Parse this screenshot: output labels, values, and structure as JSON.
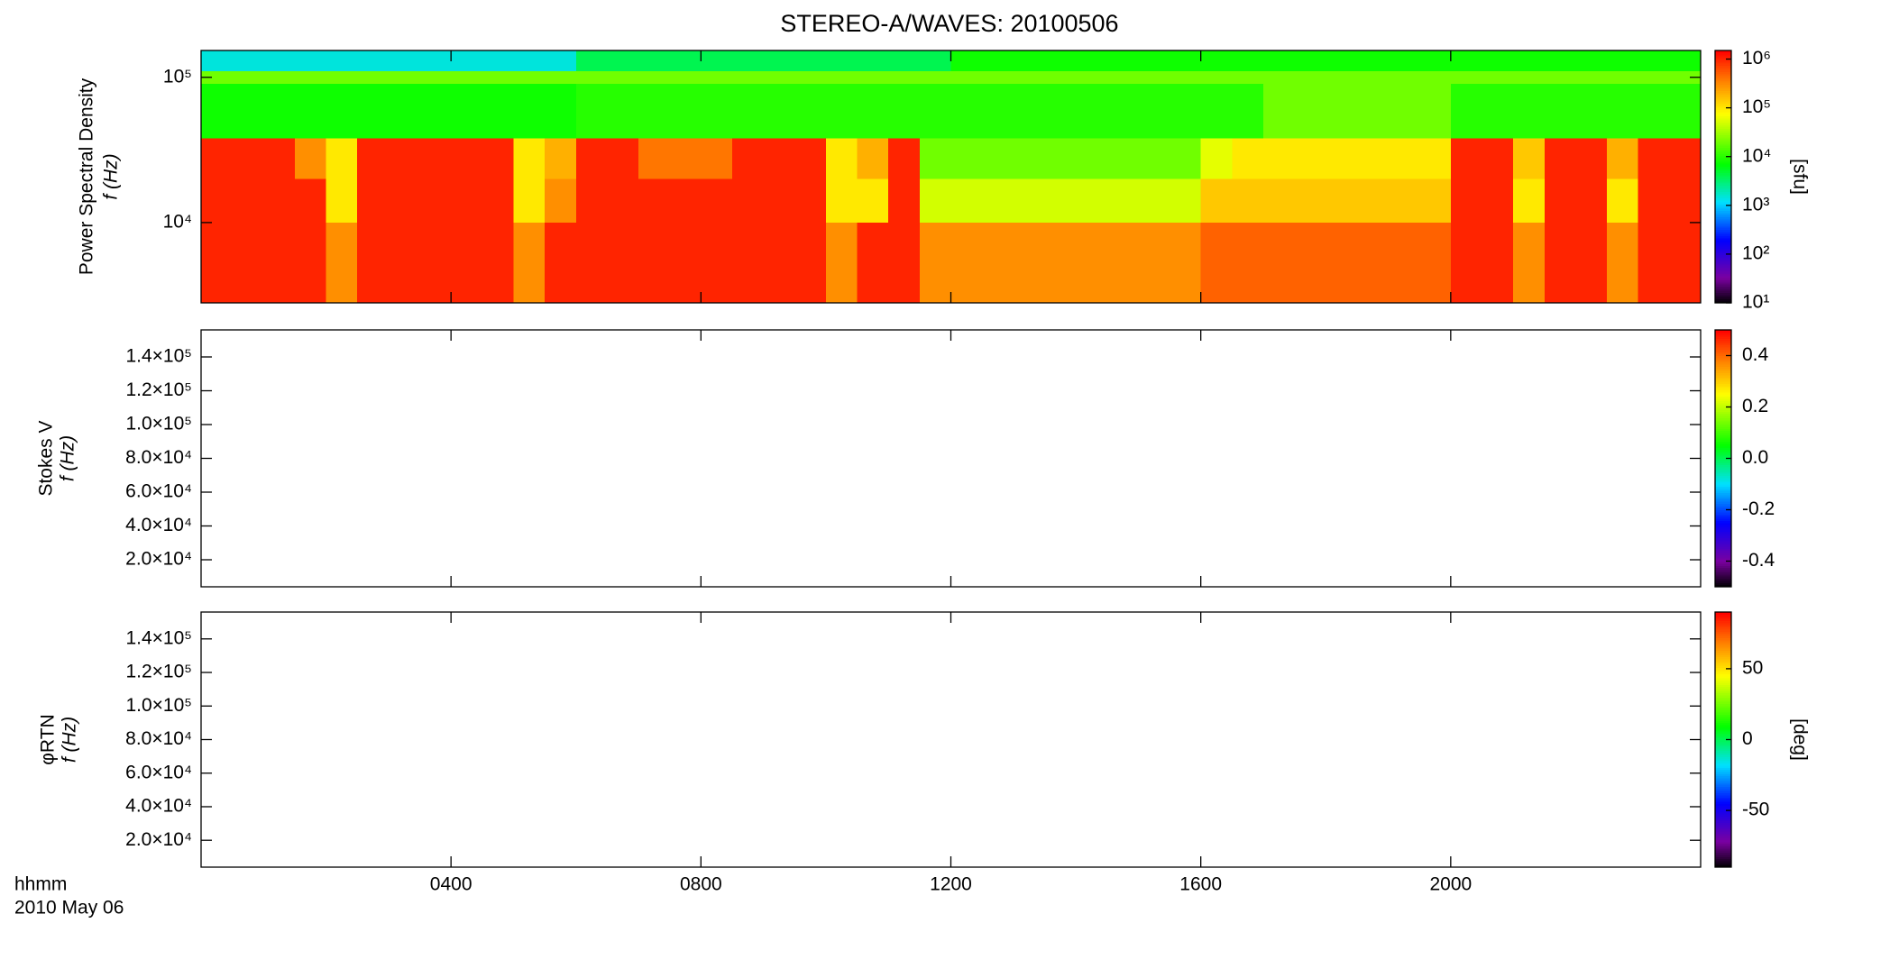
{
  "chart_data": {
    "type": "spectrogram",
    "title": "STEREO-A/WAVES: 20100506",
    "x_label": "hhmm",
    "date_label": "2010 May 06",
    "xlim": [
      0,
      24
    ],
    "xticks": [
      {
        "value": 4,
        "label": "0400"
      },
      {
        "value": 8,
        "label": "0800"
      },
      {
        "value": 12,
        "label": "1200"
      },
      {
        "value": 16,
        "label": "1600"
      },
      {
        "value": 20,
        "label": "2000"
      }
    ],
    "panels": [
      {
        "type": "heatmap",
        "ylabel": "Power Spectral Density",
        "ylabel2": "f (Hz)",
        "ylog": true,
        "ylim": [
          2800,
          153000
        ],
        "yticks": [
          {
            "value": 10000,
            "label": "10⁴"
          },
          {
            "value": 100000,
            "label": "10⁵"
          }
        ],
        "colormap": "rainbow",
        "clog": true,
        "clim": [
          10,
          1500000
        ],
        "cticks": [
          {
            "value": 10,
            "label": "10¹"
          },
          {
            "value": 100,
            "label": "10²"
          },
          {
            "value": 1000,
            "label": "10³"
          },
          {
            "value": 10000,
            "label": "10⁴"
          },
          {
            "value": 100000,
            "label": "10⁵"
          },
          {
            "value": 1000000,
            "label": "10⁶"
          }
        ],
        "cbar_label": "[sfu]",
        "x_bins": [
          0,
          0.5,
          1,
          1.5,
          2,
          2.5,
          3,
          3.5,
          4,
          4.5,
          5,
          5.5,
          6,
          6.5,
          7,
          7.5,
          8,
          8.5,
          9,
          9.5,
          10,
          10.5,
          11,
          11.5,
          12,
          12.5,
          13,
          13.5,
          14,
          14.5,
          15,
          15.5,
          16,
          16.5,
          17,
          17.5,
          18,
          18.5,
          19,
          19.5,
          20,
          20.5,
          21,
          21.5,
          22,
          22.5,
          23,
          23.5,
          24
        ],
        "y_bins": [
          2800,
          10000,
          20000,
          38000,
          90000,
          110000,
          153000
        ],
        "z": [
          [
            1000000,
            1000000,
            1000000,
            1000000,
            300000,
            1000000,
            1000000,
            1000000,
            1000000,
            1000000,
            300000,
            1000000,
            1000000,
            1000000,
            1000000,
            1000000,
            1000000,
            1000000,
            1000000,
            1000000,
            300000,
            1000000,
            1000000,
            300000,
            300000,
            300000,
            300000,
            300000,
            300000,
            300000,
            300000,
            300000,
            500000,
            500000,
            500000,
            500000,
            500000,
            500000,
            500000,
            500000,
            1000000,
            1000000,
            300000,
            1000000,
            1000000,
            300000,
            1000000,
            1000000
          ],
          [
            1000000,
            1000000,
            1000000,
            1000000,
            100000,
            1000000,
            1000000,
            1000000,
            1000000,
            1000000,
            100000,
            300000,
            1000000,
            1000000,
            1000000,
            1000000,
            1000000,
            1000000,
            1000000,
            1000000,
            100000,
            100000,
            1000000,
            50000,
            50000,
            50000,
            50000,
            50000,
            50000,
            50000,
            50000,
            50000,
            150000,
            150000,
            150000,
            150000,
            150000,
            150000,
            150000,
            150000,
            1000000,
            1000000,
            100000,
            1000000,
            1000000,
            100000,
            1000000,
            1000000
          ],
          [
            1000000,
            1000000,
            1000000,
            300000,
            100000,
            1000000,
            1000000,
            1000000,
            1000000,
            1000000,
            100000,
            200000,
            1000000,
            1000000,
            400000,
            400000,
            400000,
            1000000,
            1000000,
            1000000,
            100000,
            200000,
            1000000,
            20000,
            20000,
            20000,
            20000,
            20000,
            20000,
            20000,
            20000,
            20000,
            60000,
            100000,
            100000,
            100000,
            100000,
            100000,
            100000,
            100000,
            1000000,
            1000000,
            150000,
            1000000,
            1000000,
            200000,
            1000000,
            1000000
          ],
          [
            8000,
            8000,
            8000,
            8000,
            8000,
            8000,
            8000,
            8000,
            8000,
            8000,
            8000,
            8000,
            10000,
            10000,
            10000,
            10000,
            10000,
            10000,
            10000,
            10000,
            10000,
            10000,
            10000,
            10000,
            10000,
            10000,
            10000,
            10000,
            10000,
            10000,
            10000,
            10000,
            10000,
            10000,
            20000,
            20000,
            20000,
            20000,
            20000,
            20000,
            10000,
            10000,
            10000,
            10000,
            10000,
            10000,
            10000,
            10000
          ],
          [
            20000,
            20000,
            20000,
            20000,
            20000,
            20000,
            20000,
            20000,
            20000,
            20000,
            20000,
            20000,
            20000,
            20000,
            20000,
            20000,
            20000,
            20000,
            20000,
            20000,
            20000,
            20000,
            20000,
            20000,
            20000,
            20000,
            20000,
            20000,
            20000,
            20000,
            20000,
            20000,
            20000,
            20000,
            20000,
            20000,
            20000,
            20000,
            20000,
            20000,
            20000,
            20000,
            20000,
            20000,
            20000,
            20000,
            20000,
            20000
          ],
          [
            1500,
            1500,
            1500,
            1500,
            1500,
            1500,
            1500,
            1500,
            1500,
            1500,
            1500,
            1500,
            4000,
            4000,
            4000,
            4000,
            4000,
            4000,
            4000,
            4000,
            4000,
            4000,
            4000,
            4000,
            8000,
            8000,
            8000,
            8000,
            8000,
            8000,
            8000,
            8000,
            8000,
            8000,
            8000,
            8000,
            8000,
            8000,
            8000,
            8000,
            8000,
            8000,
            8000,
            8000,
            8000,
            8000,
            8000,
            8000
          ]
        ]
      },
      {
        "type": "heatmap",
        "ylabel": "Stokes V",
        "ylabel2": "f (Hz)",
        "ylog": false,
        "ylim": [
          4000,
          156000
        ],
        "yticks": [
          {
            "value": 20000,
            "label": "2.0×10⁴"
          },
          {
            "value": 40000,
            "label": "4.0×10⁴"
          },
          {
            "value": 60000,
            "label": "6.0×10⁴"
          },
          {
            "value": 80000,
            "label": "8.0×10⁴"
          },
          {
            "value": 100000,
            "label": "1.0×10⁵"
          },
          {
            "value": 120000,
            "label": "1.2×10⁵"
          },
          {
            "value": 140000,
            "label": "1.4×10⁵"
          }
        ],
        "colormap": "rainbow",
        "clog": false,
        "clim": [
          -0.5,
          0.5
        ],
        "cticks": [
          -0.4,
          -0.2,
          {
            "value": 0,
            "label": "0.0"
          },
          0.2,
          0.4
        ]
      },
      {
        "type": "heatmap",
        "ylabel": "φRTN",
        "ylabel2": "f (Hz)",
        "ylog": false,
        "ylim": [
          4000,
          156000
        ],
        "yticks": [
          {
            "value": 20000,
            "label": "2.0×10⁴"
          },
          {
            "value": 40000,
            "label": "4.0×10⁴"
          },
          {
            "value": 60000,
            "label": "6.0×10⁴"
          },
          {
            "value": 80000,
            "label": "8.0×10⁴"
          },
          {
            "value": 100000,
            "label": "1.0×10⁵"
          },
          {
            "value": 120000,
            "label": "1.2×10⁵"
          },
          {
            "value": 140000,
            "label": "1.4×10⁵"
          }
        ],
        "colormap": "rainbow",
        "clog": false,
        "clim": [
          -90,
          90
        ],
        "cticks": [
          -50,
          0,
          50
        ],
        "cbar_label": "[deg]"
      }
    ]
  }
}
